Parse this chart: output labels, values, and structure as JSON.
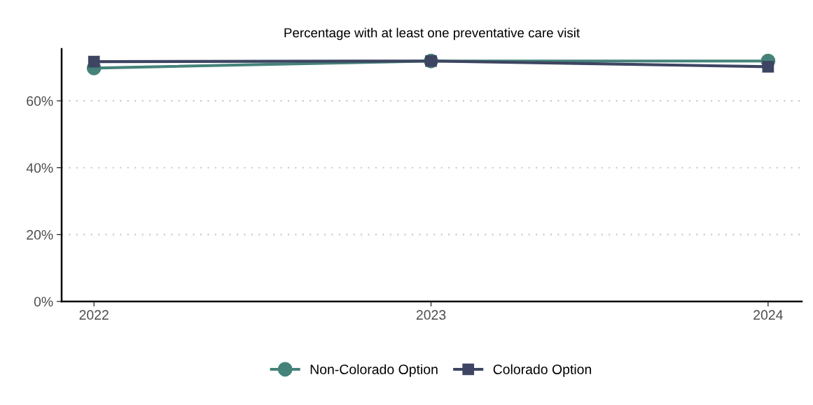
{
  "chart_data": {
    "type": "line",
    "title": "Percentage with at least one preventative care visit",
    "x": [
      2022,
      2023,
      2024
    ],
    "series": [
      {
        "name": "Non-Colorado Option",
        "color": "#45837a",
        "marker": "circle",
        "values": [
          69.8,
          71.9,
          71.9
        ]
      },
      {
        "name": "Colorado Option",
        "color": "#3d4562",
        "marker": "square",
        "values": [
          71.7,
          71.9,
          70.2
        ]
      }
    ],
    "xlim": [
      2021.904,
      2024.1
    ],
    "xticks": [
      2022,
      2023,
      2024
    ],
    "ylim": [
      0,
      75.5
    ],
    "yticks": [
      {
        "value": 0,
        "label": "0%"
      },
      {
        "value": 20,
        "label": "20%"
      },
      {
        "value": 40,
        "label": "40%"
      },
      {
        "value": 60,
        "label": "60%"
      }
    ],
    "grid": "y",
    "legend": "bottom",
    "line_style": "solid"
  }
}
